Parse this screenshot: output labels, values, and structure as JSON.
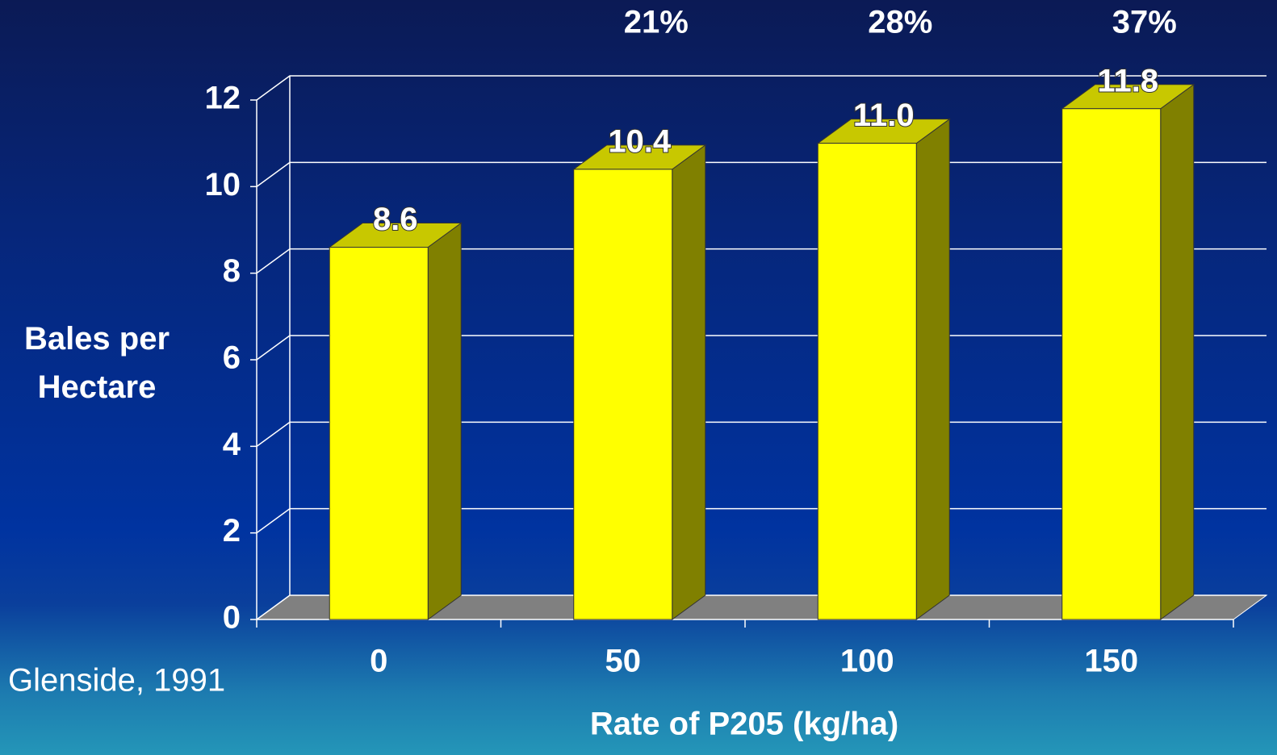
{
  "chart_data": {
    "type": "bar3d",
    "categories": [
      "0",
      "50",
      "100",
      "150"
    ],
    "values": [
      8.6,
      10.4,
      11.0,
      11.8
    ],
    "value_labels": [
      "8.6",
      "10.4",
      "11.0",
      "11.8"
    ],
    "annotations": [
      "21%",
      "28%",
      "37%"
    ],
    "color": "#ffff00",
    "ylim": [
      0,
      12
    ],
    "yticks": [
      0,
      2,
      4,
      6,
      8,
      10,
      12
    ],
    "grid": true,
    "y_label": "Bales per Hectare",
    "x_label": "Rate of P205 (kg/ha)",
    "source": "Glenside, 1991"
  }
}
